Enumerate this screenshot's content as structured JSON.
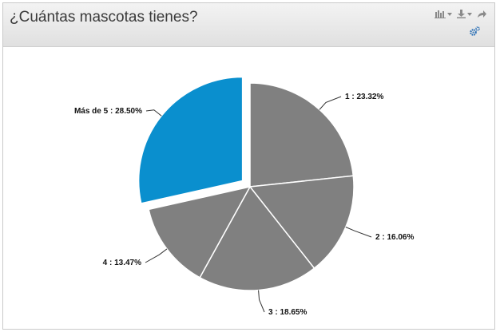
{
  "header": {
    "title": "¿Cuántas mascotas tienes?"
  },
  "icons": [
    "bar-chart-icon",
    "download-icon",
    "share-icon",
    "gear-icon"
  ],
  "colors": {
    "slice": "#808080",
    "highlight": "#0a8fce",
    "border": "#ffffff",
    "icon": "#8a8a8a",
    "gear": "#2a6fb5"
  },
  "chart_data": {
    "type": "pie",
    "title": "",
    "series": [
      {
        "values": [
          23.32,
          16.06,
          18.65,
          13.47,
          28.5
        ]
      }
    ],
    "slices": [
      {
        "label": "1",
        "value": 23.32,
        "text": "1 : 23.32%"
      },
      {
        "label": "2",
        "value": 16.06,
        "text": "2 : 16.06%"
      },
      {
        "label": "3",
        "value": 18.65,
        "text": "3 : 18.65%"
      },
      {
        "label": "4",
        "value": 13.47,
        "text": "4 : 13.47%"
      },
      {
        "label": "Más de 5",
        "value": 28.5,
        "text": "Más de 5 : 28.50%",
        "highlighted": true
      }
    ],
    "legend": "none"
  }
}
